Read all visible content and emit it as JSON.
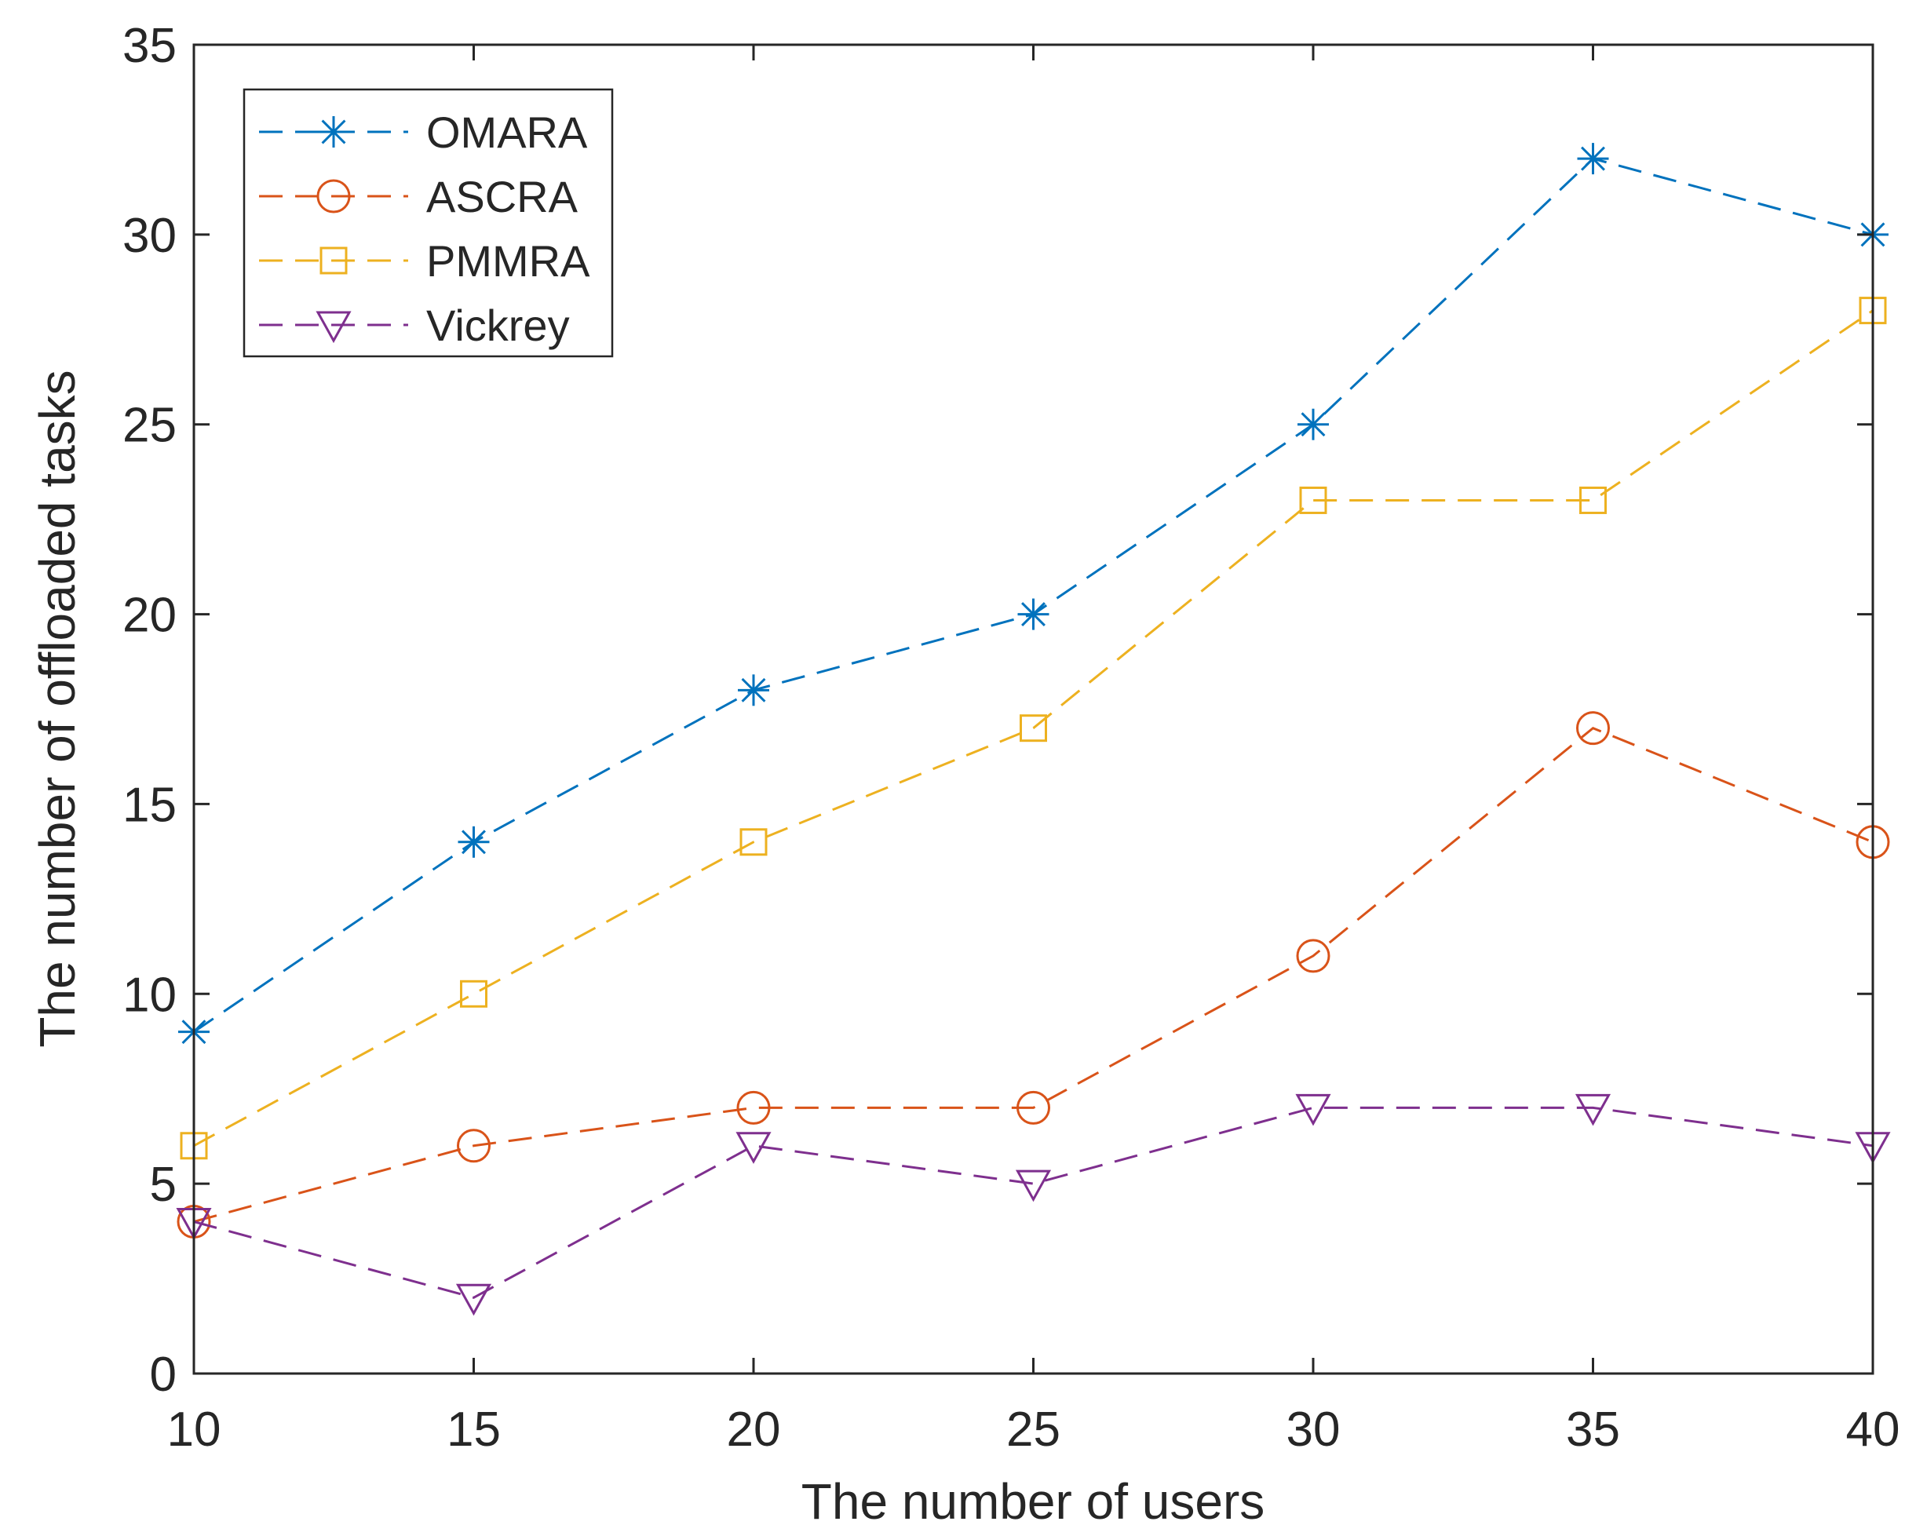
{
  "chart_data": {
    "type": "line",
    "title": "",
    "xlabel": "The number of users",
    "ylabel": "The number of offloaded tasks",
    "x": [
      10,
      15,
      20,
      25,
      30,
      35,
      40
    ],
    "xlim": [
      10,
      40
    ],
    "ylim": [
      0,
      35
    ],
    "xticks": [
      10,
      15,
      20,
      25,
      30,
      35,
      40
    ],
    "yticks": [
      0,
      5,
      10,
      15,
      20,
      25,
      30,
      35
    ],
    "grid": false,
    "legend_location": "top-left",
    "series": [
      {
        "name": "OMARA",
        "color": "#0072BD",
        "marker": "asterisk",
        "values": [
          9,
          14,
          18,
          20,
          25,
          32,
          30
        ]
      },
      {
        "name": "ASCRA",
        "color": "#D95319",
        "marker": "circle",
        "values": [
          4,
          6,
          7,
          7,
          11,
          17,
          14
        ]
      },
      {
        "name": "PMMRA",
        "color": "#EDB120",
        "marker": "square",
        "values": [
          6,
          10,
          14,
          17,
          23,
          23,
          28
        ]
      },
      {
        "name": "Vickrey",
        "color": "#7E2F8E",
        "marker": "triangle-down",
        "values": [
          4,
          2,
          6,
          5,
          7,
          7,
          6
        ]
      }
    ]
  }
}
